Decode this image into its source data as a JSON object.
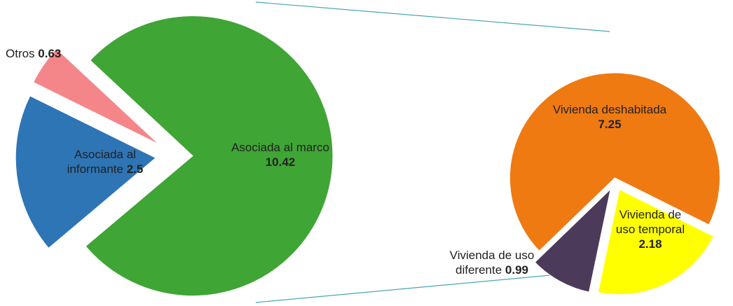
{
  "chart_data": {
    "type": "pie_of_pie",
    "categories": [
      "Asociada al marco",
      "Asociada al informante",
      "Otros"
    ],
    "values": [
      10.42,
      2.5,
      0.63
    ],
    "colors": [
      "#3fa535",
      "#2e75b6",
      "#f4868a"
    ],
    "secondary": {
      "categories": [
        "Vivienda deshabitada",
        "Vivienda de uso temporal",
        "Vivienda de uso diferente"
      ],
      "values": [
        7.25,
        2.18,
        0.99
      ],
      "colors": [
        "#ef7a12",
        "#ffff00",
        "#4b3a5a"
      ]
    }
  }
}
